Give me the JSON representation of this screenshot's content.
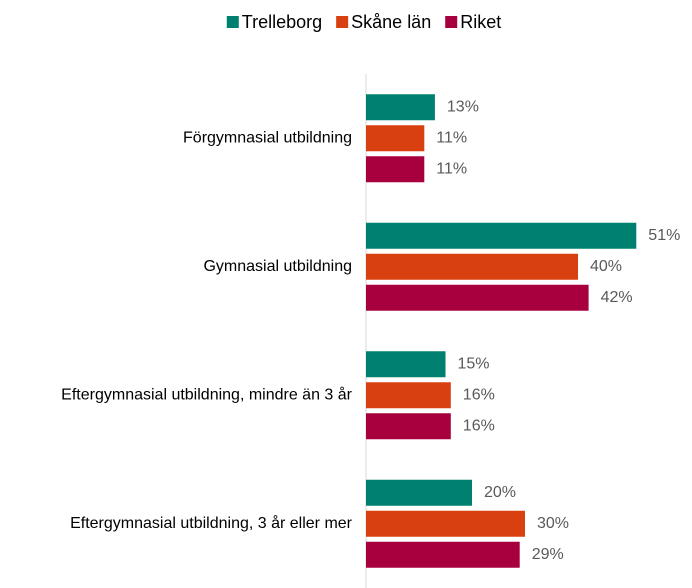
{
  "chart_data": {
    "type": "bar",
    "orientation": "horizontal",
    "categories": [
      "Förgymnasial utbildning",
      "Gymnasial utbildning",
      "Eftergymnasial utbildning, mindre än 3 år",
      "Eftergymnasial utbildning, 3 år eller mer"
    ],
    "series": [
      {
        "name": "Trelleborg",
        "color": "#00806e",
        "values": [
          13,
          51,
          15,
          20
        ],
        "value_labels": [
          "13%",
          "51%",
          "15%",
          "20%"
        ]
      },
      {
        "name": "Skåne län",
        "color": "#d9400f",
        "values": [
          11,
          40,
          16,
          30
        ],
        "value_labels": [
          "11%",
          "40%",
          "16%",
          "30%"
        ]
      },
      {
        "name": "Riket",
        "color": "#a8003e",
        "values": [
          11,
          42,
          16,
          29
        ],
        "value_labels": [
          "11%",
          "42%",
          "16%",
          "29%"
        ]
      }
    ],
    "xlim": [
      0,
      60
    ],
    "legend": "top"
  }
}
